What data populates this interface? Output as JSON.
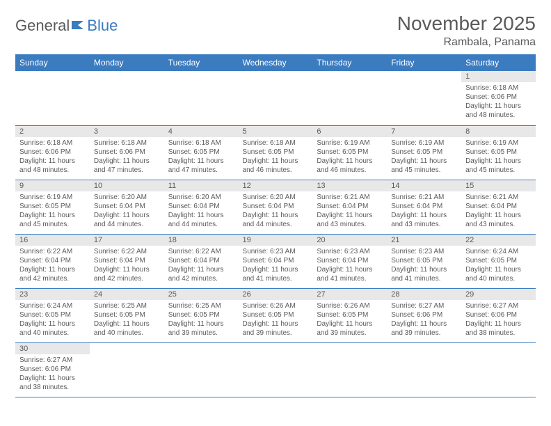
{
  "logo": {
    "text1": "General",
    "text2": "Blue"
  },
  "title": "November 2025",
  "location": "Rambala, Panama",
  "colors": {
    "header_bg": "#3b7bbf",
    "header_text": "#ffffff",
    "daynum_bg": "#e8e8e8",
    "text_color": "#5a5a5a",
    "border_color": "#3b7bbf",
    "page_bg": "#ffffff"
  },
  "weekdays": [
    "Sunday",
    "Monday",
    "Tuesday",
    "Wednesday",
    "Thursday",
    "Friday",
    "Saturday"
  ],
  "weeks": [
    [
      null,
      null,
      null,
      null,
      null,
      null,
      {
        "n": "1",
        "sr": "Sunrise: 6:18 AM",
        "ss": "Sunset: 6:06 PM",
        "d1": "Daylight: 11 hours",
        "d2": "and 48 minutes."
      }
    ],
    [
      {
        "n": "2",
        "sr": "Sunrise: 6:18 AM",
        "ss": "Sunset: 6:06 PM",
        "d1": "Daylight: 11 hours",
        "d2": "and 48 minutes."
      },
      {
        "n": "3",
        "sr": "Sunrise: 6:18 AM",
        "ss": "Sunset: 6:06 PM",
        "d1": "Daylight: 11 hours",
        "d2": "and 47 minutes."
      },
      {
        "n": "4",
        "sr": "Sunrise: 6:18 AM",
        "ss": "Sunset: 6:05 PM",
        "d1": "Daylight: 11 hours",
        "d2": "and 47 minutes."
      },
      {
        "n": "5",
        "sr": "Sunrise: 6:18 AM",
        "ss": "Sunset: 6:05 PM",
        "d1": "Daylight: 11 hours",
        "d2": "and 46 minutes."
      },
      {
        "n": "6",
        "sr": "Sunrise: 6:19 AM",
        "ss": "Sunset: 6:05 PM",
        "d1": "Daylight: 11 hours",
        "d2": "and 46 minutes."
      },
      {
        "n": "7",
        "sr": "Sunrise: 6:19 AM",
        "ss": "Sunset: 6:05 PM",
        "d1": "Daylight: 11 hours",
        "d2": "and 45 minutes."
      },
      {
        "n": "8",
        "sr": "Sunrise: 6:19 AM",
        "ss": "Sunset: 6:05 PM",
        "d1": "Daylight: 11 hours",
        "d2": "and 45 minutes."
      }
    ],
    [
      {
        "n": "9",
        "sr": "Sunrise: 6:19 AM",
        "ss": "Sunset: 6:05 PM",
        "d1": "Daylight: 11 hours",
        "d2": "and 45 minutes."
      },
      {
        "n": "10",
        "sr": "Sunrise: 6:20 AM",
        "ss": "Sunset: 6:04 PM",
        "d1": "Daylight: 11 hours",
        "d2": "and 44 minutes."
      },
      {
        "n": "11",
        "sr": "Sunrise: 6:20 AM",
        "ss": "Sunset: 6:04 PM",
        "d1": "Daylight: 11 hours",
        "d2": "and 44 minutes."
      },
      {
        "n": "12",
        "sr": "Sunrise: 6:20 AM",
        "ss": "Sunset: 6:04 PM",
        "d1": "Daylight: 11 hours",
        "d2": "and 44 minutes."
      },
      {
        "n": "13",
        "sr": "Sunrise: 6:21 AM",
        "ss": "Sunset: 6:04 PM",
        "d1": "Daylight: 11 hours",
        "d2": "and 43 minutes."
      },
      {
        "n": "14",
        "sr": "Sunrise: 6:21 AM",
        "ss": "Sunset: 6:04 PM",
        "d1": "Daylight: 11 hours",
        "d2": "and 43 minutes."
      },
      {
        "n": "15",
        "sr": "Sunrise: 6:21 AM",
        "ss": "Sunset: 6:04 PM",
        "d1": "Daylight: 11 hours",
        "d2": "and 43 minutes."
      }
    ],
    [
      {
        "n": "16",
        "sr": "Sunrise: 6:22 AM",
        "ss": "Sunset: 6:04 PM",
        "d1": "Daylight: 11 hours",
        "d2": "and 42 minutes."
      },
      {
        "n": "17",
        "sr": "Sunrise: 6:22 AM",
        "ss": "Sunset: 6:04 PM",
        "d1": "Daylight: 11 hours",
        "d2": "and 42 minutes."
      },
      {
        "n": "18",
        "sr": "Sunrise: 6:22 AM",
        "ss": "Sunset: 6:04 PM",
        "d1": "Daylight: 11 hours",
        "d2": "and 42 minutes."
      },
      {
        "n": "19",
        "sr": "Sunrise: 6:23 AM",
        "ss": "Sunset: 6:04 PM",
        "d1": "Daylight: 11 hours",
        "d2": "and 41 minutes."
      },
      {
        "n": "20",
        "sr": "Sunrise: 6:23 AM",
        "ss": "Sunset: 6:04 PM",
        "d1": "Daylight: 11 hours",
        "d2": "and 41 minutes."
      },
      {
        "n": "21",
        "sr": "Sunrise: 6:23 AM",
        "ss": "Sunset: 6:05 PM",
        "d1": "Daylight: 11 hours",
        "d2": "and 41 minutes."
      },
      {
        "n": "22",
        "sr": "Sunrise: 6:24 AM",
        "ss": "Sunset: 6:05 PM",
        "d1": "Daylight: 11 hours",
        "d2": "and 40 minutes."
      }
    ],
    [
      {
        "n": "23",
        "sr": "Sunrise: 6:24 AM",
        "ss": "Sunset: 6:05 PM",
        "d1": "Daylight: 11 hours",
        "d2": "and 40 minutes."
      },
      {
        "n": "24",
        "sr": "Sunrise: 6:25 AM",
        "ss": "Sunset: 6:05 PM",
        "d1": "Daylight: 11 hours",
        "d2": "and 40 minutes."
      },
      {
        "n": "25",
        "sr": "Sunrise: 6:25 AM",
        "ss": "Sunset: 6:05 PM",
        "d1": "Daylight: 11 hours",
        "d2": "and 39 minutes."
      },
      {
        "n": "26",
        "sr": "Sunrise: 6:26 AM",
        "ss": "Sunset: 6:05 PM",
        "d1": "Daylight: 11 hours",
        "d2": "and 39 minutes."
      },
      {
        "n": "27",
        "sr": "Sunrise: 6:26 AM",
        "ss": "Sunset: 6:05 PM",
        "d1": "Daylight: 11 hours",
        "d2": "and 39 minutes."
      },
      {
        "n": "28",
        "sr": "Sunrise: 6:27 AM",
        "ss": "Sunset: 6:06 PM",
        "d1": "Daylight: 11 hours",
        "d2": "and 39 minutes."
      },
      {
        "n": "29",
        "sr": "Sunrise: 6:27 AM",
        "ss": "Sunset: 6:06 PM",
        "d1": "Daylight: 11 hours",
        "d2": "and 38 minutes."
      }
    ],
    [
      {
        "n": "30",
        "sr": "Sunrise: 6:27 AM",
        "ss": "Sunset: 6:06 PM",
        "d1": "Daylight: 11 hours",
        "d2": "and 38 minutes."
      },
      null,
      null,
      null,
      null,
      null,
      null
    ]
  ]
}
